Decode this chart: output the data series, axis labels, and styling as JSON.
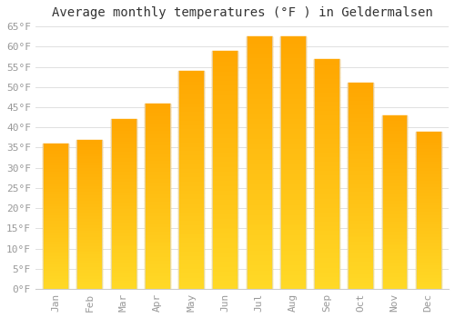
{
  "title": "Average monthly temperatures (°F ) in Geldermalsen",
  "months": [
    "Jan",
    "Feb",
    "Mar",
    "Apr",
    "May",
    "Jun",
    "Jul",
    "Aug",
    "Sep",
    "Oct",
    "Nov",
    "Dec"
  ],
  "values": [
    36,
    37,
    42,
    46,
    54,
    59,
    62.5,
    62.5,
    57,
    51,
    43,
    39
  ],
  "bar_color_top": "#FFA500",
  "bar_color_bottom": "#FFD060",
  "bar_edge_color": "#E8E8E8",
  "background_color": "#FFFFFF",
  "grid_color": "#E0E0E0",
  "ylim": [
    0,
    65
  ],
  "yticks": [
    0,
    5,
    10,
    15,
    20,
    25,
    30,
    35,
    40,
    45,
    50,
    55,
    60,
    65
  ],
  "title_fontsize": 10,
  "tick_fontsize": 8,
  "tick_color": "#999999",
  "spine_color": "#CCCCCC"
}
